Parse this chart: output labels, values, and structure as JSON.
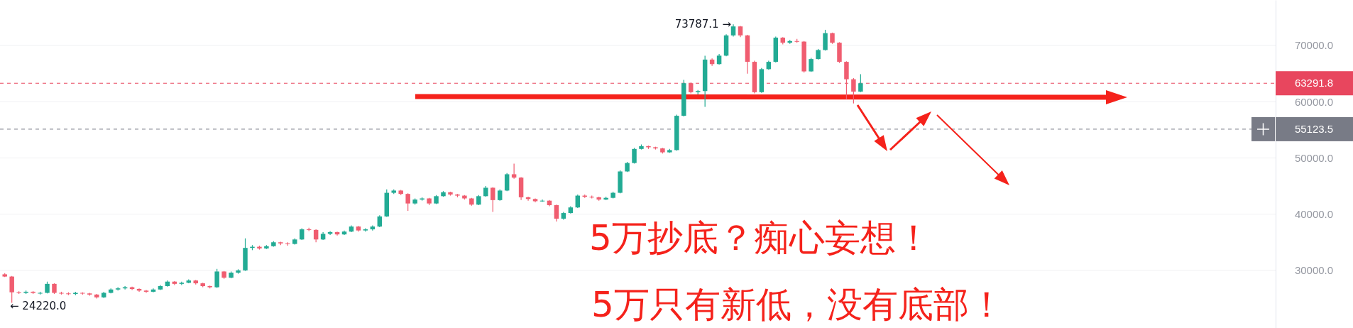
{
  "chart_data": {
    "type": "candlestick",
    "categories": [
      null,
      null,
      null,
      null,
      null,
      null,
      null,
      null,
      null,
      null,
      null,
      null,
      null,
      null,
      null,
      null,
      null,
      null,
      null,
      null,
      null,
      null,
      null,
      null,
      null,
      null,
      null,
      null,
      null,
      null,
      null,
      null,
      null,
      null,
      null,
      null,
      null,
      null,
      null,
      null,
      null,
      null,
      null,
      null,
      null,
      null,
      null,
      null,
      null,
      null,
      null,
      null,
      null,
      null,
      null,
      null,
      null,
      null,
      null,
      null,
      null,
      null,
      null,
      null,
      null,
      null,
      null,
      null,
      null,
      null,
      null,
      null,
      null,
      null,
      null,
      null,
      null,
      null,
      null,
      null,
      null,
      null,
      null,
      null,
      null,
      null,
      null,
      null,
      null,
      null,
      null,
      null,
      null,
      null,
      null,
      null,
      null,
      null,
      null,
      null,
      null,
      null,
      null,
      null,
      null,
      null,
      null,
      null,
      null,
      null,
      null,
      null,
      null,
      null,
      null,
      null,
      null,
      null,
      null,
      null,
      null,
      null,
      null,
      null,
      null,
      null,
      null,
      null,
      null,
      null,
      null,
      null,
      null,
      null,
      null,
      null,
      null,
      null,
      null,
      null,
      null,
      null,
      null,
      null,
      null,
      null,
      null,
      null,
      null,
      null,
      null,
      null,
      null,
      null,
      null,
      null,
      null,
      null,
      null,
      null,
      null,
      null,
      null,
      null,
      null,
      null,
      null,
      null,
      null,
      null,
      null,
      null,
      null,
      null,
      null,
      null,
      null,
      null,
      null,
      null
    ],
    "ohlc": [
      [
        29300,
        29500,
        28800,
        28900
      ],
      [
        28900,
        29000,
        24220,
        26100
      ],
      [
        26100,
        26300,
        25800,
        26000
      ],
      [
        26000,
        26400,
        25800,
        26200
      ],
      [
        26200,
        26300,
        25800,
        26000
      ],
      [
        26000,
        26200,
        25700,
        26000
      ],
      [
        26000,
        28000,
        25900,
        27600
      ],
      [
        27600,
        27700,
        25800,
        26000
      ],
      [
        26000,
        26200,
        25700,
        25900
      ],
      [
        25900,
        26100,
        25600,
        25800
      ],
      [
        25800,
        26200,
        25600,
        26000
      ],
      [
        26000,
        26100,
        25700,
        25900
      ],
      [
        25900,
        26000,
        25500,
        25700
      ],
      [
        25700,
        25800,
        25000,
        25200
      ],
      [
        25200,
        26200,
        25100,
        26000
      ],
      [
        26000,
        26800,
        25900,
        26600
      ],
      [
        26600,
        27000,
        26400,
        26800
      ],
      [
        26800,
        27200,
        26600,
        27000
      ],
      [
        27000,
        27100,
        26500,
        26700
      ],
      [
        26700,
        26800,
        26200,
        26400
      ],
      [
        26400,
        26500,
        26000,
        26200
      ],
      [
        26200,
        26800,
        26100,
        26600
      ],
      [
        26600,
        27400,
        26500,
        27200
      ],
      [
        27200,
        28200,
        27100,
        28000
      ],
      [
        28000,
        28100,
        27400,
        27600
      ],
      [
        27600,
        28000,
        27400,
        27800
      ],
      [
        27800,
        28400,
        27700,
        28200
      ],
      [
        28200,
        28300,
        27500,
        27700
      ],
      [
        27700,
        27800,
        27000,
        27200
      ],
      [
        27200,
        27300,
        26800,
        27000
      ],
      [
        27000,
        30250,
        26900,
        29800
      ],
      [
        29800,
        29900,
        28500,
        28700
      ],
      [
        28700,
        29800,
        28600,
        29600
      ],
      [
        29600,
        30200,
        29400,
        30000
      ],
      [
        30000,
        35700,
        29900,
        34000
      ],
      [
        34000,
        34500,
        33600,
        34200
      ],
      [
        34200,
        34400,
        33700,
        33900
      ],
      [
        33900,
        34500,
        33800,
        34300
      ],
      [
        34300,
        35200,
        34200,
        35000
      ],
      [
        35000,
        35100,
        34500,
        34800
      ],
      [
        34800,
        35000,
        34400,
        34700
      ],
      [
        34700,
        35700,
        34600,
        35500
      ],
      [
        35500,
        37500,
        35400,
        37300
      ],
      [
        37300,
        37600,
        37000,
        37200
      ],
      [
        37200,
        37300,
        35000,
        35500
      ],
      [
        35500,
        36800,
        35400,
        36500
      ],
      [
        36500,
        37000,
        36300,
        36800
      ],
      [
        36800,
        36900,
        36200,
        36400
      ],
      [
        36400,
        37100,
        36300,
        36900
      ],
      [
        36900,
        38000,
        36800,
        37800
      ],
      [
        37800,
        37900,
        36900,
        37100
      ],
      [
        37100,
        37500,
        36900,
        37300
      ],
      [
        37300,
        38000,
        37100,
        37800
      ],
      [
        37800,
        39800,
        37700,
        39600
      ],
      [
        39600,
        44400,
        39500,
        43800
      ],
      [
        43800,
        44400,
        43600,
        44200
      ],
      [
        44200,
        44300,
        43400,
        43600
      ],
      [
        43600,
        43700,
        40600,
        41900
      ],
      [
        41900,
        42800,
        41700,
        42600
      ],
      [
        42600,
        43000,
        42400,
        42800
      ],
      [
        42800,
        42900,
        41600,
        41900
      ],
      [
        41900,
        43400,
        41800,
        43200
      ],
      [
        43200,
        44100,
        43100,
        43900
      ],
      [
        43900,
        44000,
        43300,
        43500
      ],
      [
        43500,
        43600,
        43000,
        43300
      ],
      [
        43300,
        43400,
        42600,
        42800
      ],
      [
        42800,
        42900,
        41500,
        41700
      ],
      [
        41700,
        43400,
        41600,
        43200
      ],
      [
        43200,
        45000,
        43100,
        44700
      ],
      [
        44700,
        44800,
        40400,
        42500
      ],
      [
        42500,
        44400,
        42400,
        44200
      ],
      [
        44200,
        47300,
        44100,
        47100
      ],
      [
        47100,
        49000,
        46300,
        46500
      ],
      [
        46500,
        46600,
        42500,
        43000
      ],
      [
        43000,
        43100,
        42400,
        42700
      ],
      [
        42700,
        42800,
        42100,
        42300
      ],
      [
        42300,
        42600,
        42200,
        42400
      ],
      [
        42400,
        42500,
        41400,
        41600
      ],
      [
        41600,
        41700,
        38700,
        39200
      ],
      [
        39200,
        40400,
        39000,
        40200
      ],
      [
        40200,
        41400,
        40100,
        41200
      ],
      [
        41200,
        43500,
        41100,
        43300
      ],
      [
        43300,
        43500,
        42900,
        43100
      ],
      [
        43100,
        43300,
        42800,
        43000
      ],
      [
        43000,
        43100,
        42400,
        42600
      ],
      [
        42600,
        43100,
        42500,
        42900
      ],
      [
        42900,
        44000,
        42800,
        43800
      ],
      [
        43800,
        47800,
        43700,
        47600
      ],
      [
        47600,
        49300,
        47500,
        49100
      ],
      [
        49100,
        51800,
        49000,
        51600
      ],
      [
        51600,
        52400,
        51500,
        52100
      ],
      [
        52100,
        52200,
        51600,
        51900
      ],
      [
        51900,
        52000,
        51500,
        51700
      ],
      [
        51700,
        51800,
        50800,
        51000
      ],
      [
        51000,
        51600,
        50900,
        51400
      ],
      [
        51400,
        57700,
        51300,
        57500
      ],
      [
        57500,
        63900,
        57400,
        63300
      ],
      [
        63300,
        63400,
        61500,
        61700
      ],
      [
        61700,
        62100,
        61300,
        61900
      ],
      [
        61900,
        68200,
        59100,
        67500
      ],
      [
        67500,
        67700,
        66400,
        66700
      ],
      [
        66700,
        68500,
        66600,
        68200
      ],
      [
        68200,
        72000,
        68100,
        71800
      ],
      [
        71800,
        73787.1,
        71600,
        73400
      ],
      [
        73400,
        73500,
        71500,
        71800
      ],
      [
        71800,
        71900,
        65000,
        67100
      ],
      [
        67100,
        67300,
        61500,
        61700
      ],
      [
        61700,
        66000,
        61600,
        65800
      ],
      [
        65800,
        67300,
        65700,
        67100
      ],
      [
        67100,
        71600,
        67000,
        71400
      ],
      [
        71400,
        71500,
        70200,
        70500
      ],
      [
        70500,
        71000,
        70300,
        70800
      ],
      [
        70800,
        71200,
        70500,
        70700
      ],
      [
        70700,
        70800,
        65200,
        65400
      ],
      [
        65400,
        67800,
        65300,
        67600
      ],
      [
        67600,
        69400,
        67500,
        69200
      ],
      [
        69200,
        72800,
        69100,
        72200
      ],
      [
        72200,
        72300,
        70300,
        70500
      ],
      [
        70500,
        70600,
        66900,
        67100
      ],
      [
        67100,
        67200,
        60400,
        64000
      ],
      [
        64000,
        64200,
        59700,
        61800
      ],
      [
        61800,
        64900,
        61700,
        63291.8
      ],
      null,
      null,
      null,
      null,
      null,
      null,
      null,
      null,
      null,
      null,
      null,
      null,
      null,
      null,
      null,
      null,
      null,
      null,
      null,
      null,
      null,
      null,
      null,
      null,
      null,
      null,
      null,
      null,
      null,
      null,
      null,
      null,
      null,
      null,
      null,
      null,
      null,
      null,
      null,
      null,
      null,
      null,
      null,
      null,
      null,
      null,
      null,
      null,
      null,
      null,
      null,
      null,
      null,
      null,
      null,
      null,
      null,
      null
    ],
    "colors": [
      "#f05d70",
      "#f05d70",
      "#f05d70",
      "#22ab94",
      "#f05d70",
      "#22ab94",
      "#22ab94",
      "#f05d70",
      "#f05d70",
      "#f05d70",
      "#22ab94",
      "#f05d70",
      "#f05d70",
      "#f05d70",
      "#22ab94",
      "#22ab94",
      "#22ab94",
      "#22ab94",
      "#f05d70",
      "#f05d70",
      "#f05d70",
      "#22ab94",
      "#22ab94",
      "#22ab94",
      "#f05d70",
      "#22ab94",
      "#22ab94",
      "#f05d70",
      "#f05d70",
      "#f05d70",
      "#22ab94",
      "#f05d70",
      "#22ab94",
      "#22ab94",
      "#22ab94",
      "#22ab94",
      "#f05d70",
      "#22ab94",
      "#22ab94",
      "#f05d70",
      "#f05d70",
      "#22ab94",
      "#22ab94",
      "#f05d70",
      "#f05d70",
      "#22ab94",
      "#22ab94",
      "#f05d70",
      "#22ab94",
      "#22ab94",
      "#f05d70",
      "#22ab94",
      "#22ab94",
      "#22ab94",
      "#22ab94",
      "#22ab94",
      "#f05d70",
      "#f05d70",
      "#22ab94",
      "#22ab94",
      "#f05d70",
      "#22ab94",
      "#22ab94",
      "#f05d70",
      "#f05d70",
      "#f05d70",
      "#f05d70",
      "#22ab94",
      "#22ab94",
      "#f05d70",
      "#22ab94",
      "#22ab94",
      "#f05d70",
      "#f05d70",
      "#f05d70",
      "#f05d70",
      "#22ab94",
      "#f05d70",
      "#f05d70",
      "#22ab94",
      "#22ab94",
      "#22ab94",
      "#f05d70",
      "#f05d70",
      "#f05d70",
      "#22ab94",
      "#22ab94",
      "#22ab94",
      "#22ab94",
      "#22ab94",
      "#22ab94",
      "#f05d70",
      "#f05d70",
      "#f05d70",
      "#22ab94",
      "#22ab94",
      "#22ab94",
      "#f05d70",
      "#22ab94",
      "#22ab94",
      "#f05d70",
      "#22ab94",
      "#22ab94",
      "#22ab94",
      "#f05d70",
      "#f05d70",
      "#f05d70",
      "#22ab94",
      "#22ab94",
      "#22ab94",
      "#f05d70",
      "#22ab94",
      "#f05d70",
      "#f05d70",
      "#22ab94",
      "#22ab94",
      "#22ab94",
      "#f05d70",
      "#f05d70",
      "#f05d70",
      "#f05d70",
      "#22ab94",
      null,
      null,
      null,
      null,
      null,
      null,
      null,
      null,
      null,
      null,
      null,
      null,
      null,
      null,
      null,
      null,
      null,
      null,
      null,
      null,
      null,
      null,
      null,
      null,
      null,
      null,
      null,
      null,
      null,
      null,
      null,
      null,
      null,
      null,
      null,
      null,
      null,
      null,
      null,
      null,
      null,
      null,
      null,
      null,
      null,
      null,
      null,
      null,
      null,
      null,
      null,
      null,
      null,
      null,
      null,
      null,
      null,
      null
    ],
    "ylim": [
      19750,
      78100
    ],
    "yticks": [
      {
        "value": 30000,
        "label": "30000.0"
      },
      {
        "value": 40000,
        "label": "40000.0"
      },
      {
        "value": 50000,
        "label": "50000.0"
      },
      {
        "value": 60000,
        "label": "60000.0"
      },
      {
        "value": 70000,
        "label": "70000.0"
      }
    ],
    "grid": "y",
    "ref_lines": [
      {
        "axis": "y",
        "value": 63291.8,
        "label": "63291.8",
        "color": "#e8465e",
        "line_style": "dashed"
      },
      {
        "axis": "y",
        "value": 55123.5,
        "label": "55123.5",
        "color": "#787b86",
        "line_style": "dashed"
      }
    ],
    "annotations": [
      "73787.1 →",
      "← 24220.0",
      "5万抄底？痴心妄想！",
      "5万只有新低，没有底部！"
    ]
  }
}
